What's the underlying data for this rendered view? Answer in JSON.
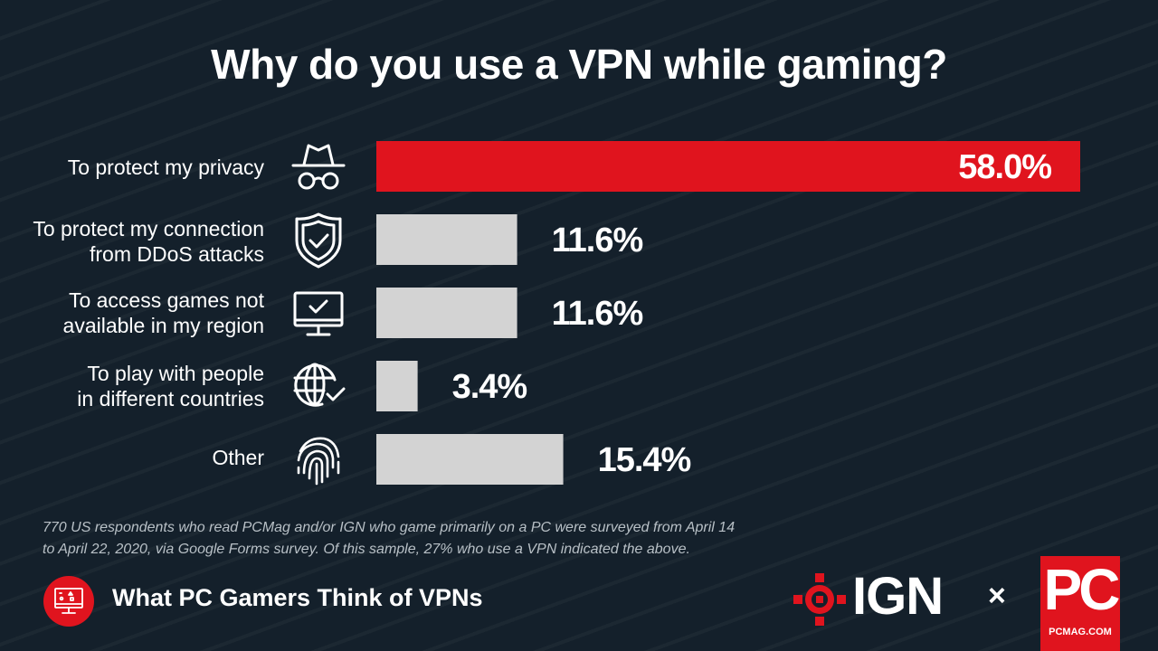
{
  "colors": {
    "background": "#14202b",
    "accent": "#e0141e",
    "bar_default": "#d3d3d3",
    "text": "#ffffff"
  },
  "chart_data": {
    "type": "bar",
    "orientation": "horizontal",
    "title": "Why do you use a VPN while gaming?",
    "categories": [
      [
        "To protect my privacy"
      ],
      [
        "To protect my connection",
        "from DDoS attacks"
      ],
      [
        "To access games not",
        "available in my region"
      ],
      [
        "To play with people",
        "in different countries"
      ],
      [
        "Other"
      ]
    ],
    "values": [
      58.0,
      11.6,
      11.6,
      3.4,
      15.4
    ],
    "value_labels": [
      "58.0%",
      "11.6%",
      "11.6%",
      "3.4%",
      "15.4%"
    ],
    "highlight_index": 0,
    "icons": [
      "spy-incognito-icon",
      "shield-check-icon",
      "monitor-check-icon",
      "globe-check-icon",
      "fingerprint-icon"
    ],
    "xlim": [
      0,
      58.0
    ],
    "grid": false,
    "legend": "none"
  },
  "footnote": [
    "770 US respondents who read PCMag and/or IGN who game primarily on a PC were surveyed from April 14",
    "to April 22, 2020, via Google Forms survey. Of this sample, 27% who use a VPN indicated the above."
  ],
  "footer": {
    "series_title": "What PC Gamers Think of VPNs",
    "badge_icon": "pc-monitor-icon",
    "ign_logo_text": "IGN",
    "separator": "×",
    "pc_logo_text": "PC",
    "pc_logo_sub": "PCMAG.COM"
  }
}
